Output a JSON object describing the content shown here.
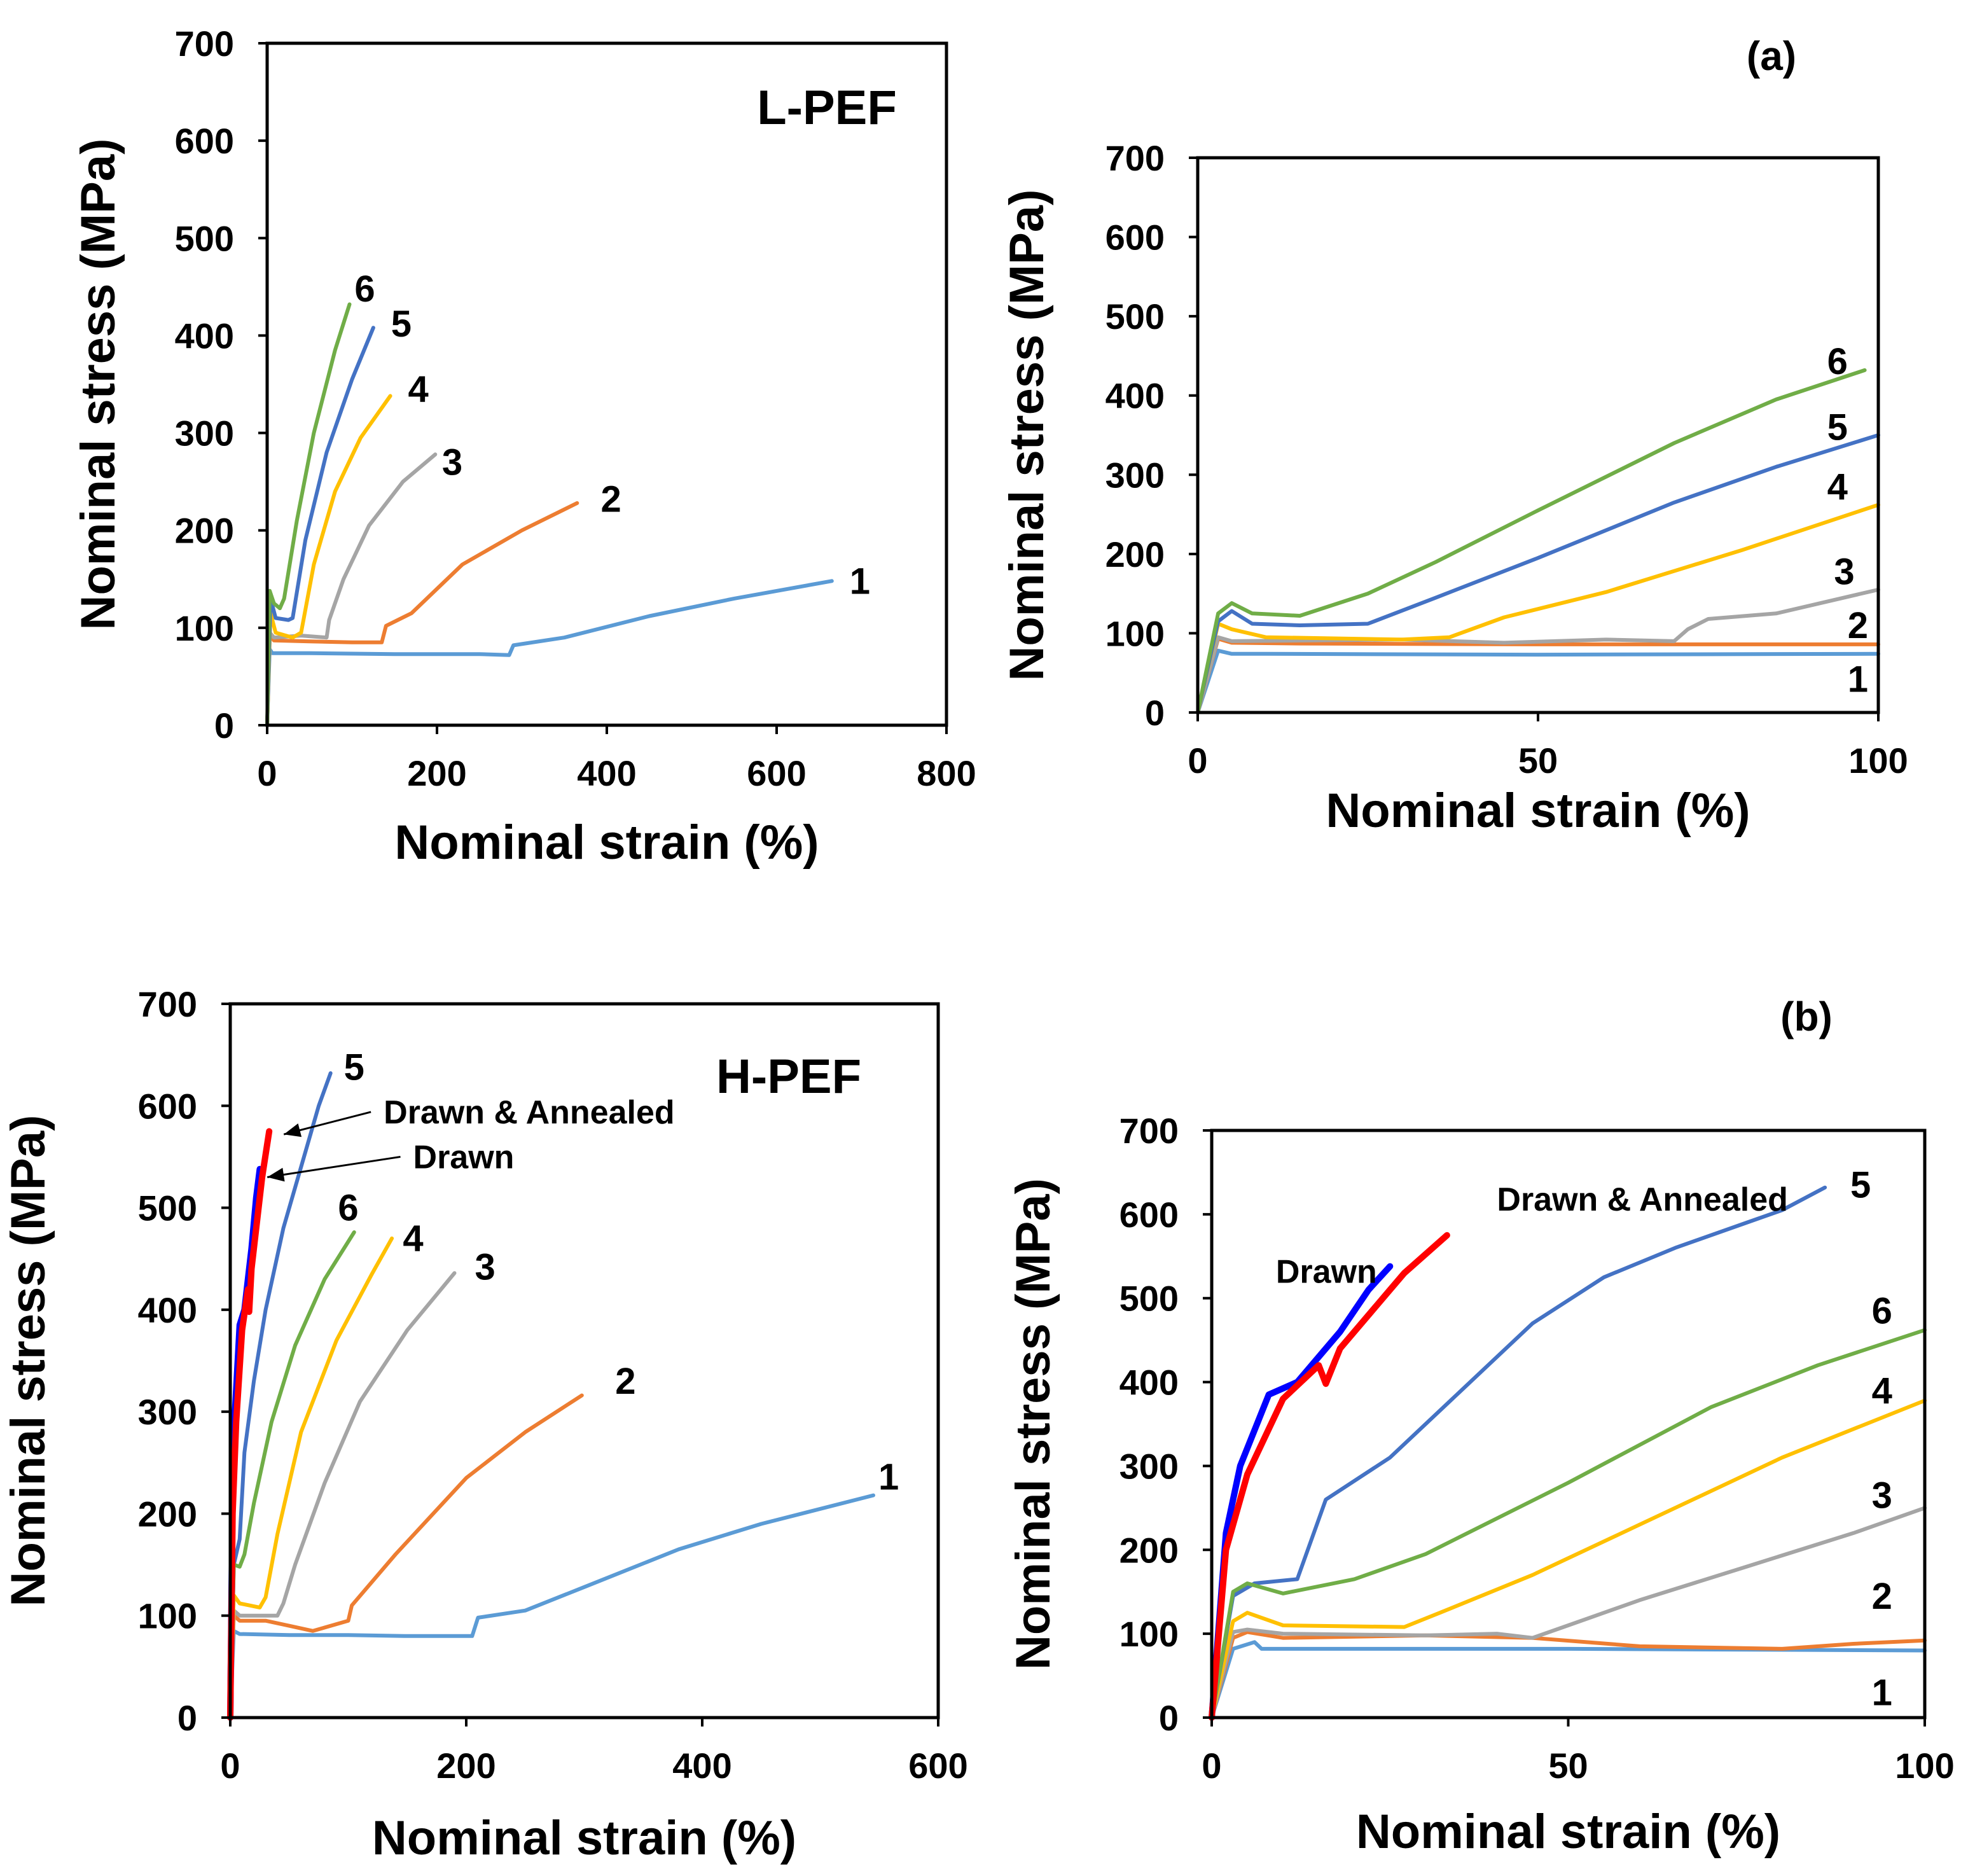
{
  "figure": {
    "panel_labels": [
      "(a)",
      "(b)"
    ],
    "colors": {
      "c1": "#5b9bd5",
      "c2": "#ed7d31",
      "c3": "#a5a5a5",
      "c4": "#ffc000",
      "c5": "#4472c4",
      "c6": "#70ad47",
      "drawn": "#0000ff",
      "annealed": "#ff0000"
    }
  },
  "chart_data": [
    {
      "id": "a-full",
      "type": "line",
      "title": "L-PEF",
      "xlabel": "Nominal strain (%)",
      "ylabel": "Nominal stress (MPa)",
      "xlim": [
        0,
        800
      ],
      "ylim": [
        0,
        700
      ],
      "xticks": [
        0,
        200,
        400,
        600,
        800
      ],
      "yticks": [
        0,
        100,
        200,
        300,
        400,
        500,
        600,
        700
      ],
      "series": [
        {
          "name": "1",
          "color": "#5b9bd5",
          "label_at": [
            698,
            148
          ],
          "x": [
            0,
            3,
            6,
            50,
            150,
            250,
            285,
            290,
            350,
            450,
            550,
            665
          ],
          "y": [
            0,
            78,
            74,
            74,
            73,
            73,
            72,
            82,
            90,
            112,
            130,
            148
          ]
        },
        {
          "name": "2",
          "color": "#ed7d31",
          "label_at": [
            405,
            232
          ],
          "x": [
            0,
            3,
            8,
            50,
            100,
            135,
            140,
            170,
            230,
            300,
            365
          ],
          "y": [
            0,
            93,
            87,
            86,
            85,
            85,
            102,
            115,
            165,
            200,
            228
          ]
        },
        {
          "name": "3",
          "color": "#a5a5a5",
          "label_at": [
            218,
            270
          ],
          "x": [
            0,
            3,
            8,
            40,
            70,
            73,
            90,
            120,
            160,
            198
          ],
          "y": [
            0,
            95,
            90,
            92,
            90,
            108,
            150,
            205,
            250,
            278
          ]
        },
        {
          "name": "4",
          "color": "#ffc000",
          "label_at": [
            178,
            345
          ],
          "x": [
            0,
            4,
            10,
            30,
            40,
            55,
            80,
            110,
            145
          ],
          "y": [
            0,
            115,
            95,
            90,
            95,
            165,
            240,
            295,
            338
          ]
        },
        {
          "name": "5",
          "color": "#4472c4",
          "label_at": [
            158,
            412
          ],
          "x": [
            0,
            4,
            10,
            25,
            30,
            45,
            70,
            100,
            125
          ],
          "y": [
            0,
            130,
            110,
            108,
            110,
            190,
            280,
            355,
            408
          ]
        },
        {
          "name": "6",
          "color": "#70ad47",
          "label_at": [
            115,
            448
          ],
          "x": [
            0,
            3,
            8,
            15,
            20,
            35,
            55,
            80,
            97
          ],
          "y": [
            0,
            138,
            125,
            120,
            130,
            210,
            300,
            385,
            432
          ]
        }
      ]
    },
    {
      "id": "a-zoom",
      "type": "line",
      "xlabel": "Nominal strain (%)",
      "ylabel": "Nominal stress (MPa)",
      "xlim": [
        0,
        100
      ],
      "ylim": [
        0,
        700
      ],
      "xticks": [
        0,
        50,
        100
      ],
      "yticks": [
        0,
        100,
        200,
        300,
        400,
        500,
        600,
        700
      ],
      "series": [
        {
          "name": "1",
          "color": "#5b9bd5",
          "label_at": [
            97,
            42
          ],
          "x": [
            0,
            3,
            5,
            10,
            50,
            100
          ],
          "y": [
            0,
            78,
            74,
            74,
            73,
            74
          ]
        },
        {
          "name": "2",
          "color": "#ed7d31",
          "label_at": [
            97,
            110
          ],
          "x": [
            0,
            3,
            5,
            15,
            50,
            100
          ],
          "y": [
            0,
            93,
            88,
            87,
            86,
            86
          ]
        },
        {
          "name": "3",
          "color": "#a5a5a5",
          "label_at": [
            95,
            178
          ],
          "x": [
            0,
            3,
            5,
            30,
            45,
            60,
            70,
            72,
            75,
            85,
            100
          ],
          "y": [
            0,
            95,
            90,
            92,
            88,
            92,
            90,
            105,
            118,
            125,
            155
          ]
        },
        {
          "name": "4",
          "color": "#ffc000",
          "label_at": [
            94,
            285
          ],
          "x": [
            0,
            3,
            5,
            10,
            30,
            37,
            45,
            60,
            80,
            100
          ],
          "y": [
            0,
            112,
            105,
            95,
            92,
            95,
            120,
            152,
            205,
            262
          ]
        },
        {
          "name": "5",
          "color": "#4472c4",
          "label_at": [
            94,
            360
          ],
          "x": [
            0,
            3,
            5,
            8,
            15,
            25,
            35,
            50,
            70,
            85,
            100
          ],
          "y": [
            0,
            115,
            128,
            112,
            110,
            112,
            145,
            195,
            265,
            310,
            350
          ]
        },
        {
          "name": "6",
          "color": "#70ad47",
          "label_at": [
            94,
            443
          ],
          "x": [
            0,
            3,
            5,
            8,
            15,
            25,
            35,
            50,
            70,
            85,
            98
          ],
          "y": [
            0,
            125,
            138,
            125,
            122,
            150,
            190,
            255,
            340,
            395,
            432
          ]
        }
      ]
    },
    {
      "id": "b-full",
      "type": "line",
      "title": "H-PEF",
      "xlabel": "Nominal strain (%)",
      "ylabel": "Nominal stress (MPa)",
      "xlim": [
        0,
        600
      ],
      "ylim": [
        0,
        700
      ],
      "xticks": [
        0,
        200,
        400,
        600
      ],
      "yticks": [
        0,
        100,
        200,
        300,
        400,
        500,
        600,
        700
      ],
      "annotations": [
        {
          "text": "Drawn & Annealed",
          "text_at": [
            130,
            594
          ],
          "point_to": [
            40,
            572
          ]
        },
        {
          "text": "Drawn",
          "text_at": [
            155,
            550
          ],
          "point_to": [
            26,
            530
          ]
        }
      ],
      "series": [
        {
          "name": "1",
          "color": "#5b9bd5",
          "label_at": [
            558,
            236
          ],
          "x": [
            0,
            3,
            8,
            50,
            100,
            150,
            205,
            210,
            250,
            300,
            380,
            450,
            545
          ],
          "y": [
            0,
            85,
            82,
            81,
            81,
            80,
            80,
            98,
            105,
            128,
            165,
            190,
            218
          ]
        },
        {
          "name": "2",
          "color": "#ed7d31",
          "label_at": [
            335,
            330
          ],
          "x": [
            0,
            3,
            8,
            30,
            50,
            70,
            100,
            103,
            140,
            200,
            250,
            298
          ],
          "y": [
            0,
            100,
            95,
            95,
            90,
            85,
            95,
            110,
            160,
            235,
            280,
            316
          ]
        },
        {
          "name": "3",
          "color": "#a5a5a5",
          "label_at": [
            216,
            442
          ],
          "x": [
            0,
            3,
            8,
            25,
            40,
            45,
            55,
            80,
            110,
            150,
            190
          ],
          "y": [
            0,
            105,
            100,
            100,
            100,
            112,
            150,
            230,
            310,
            380,
            436
          ]
        },
        {
          "name": "4",
          "color": "#ffc000",
          "label_at": [
            155,
            470
          ],
          "x": [
            0,
            3,
            8,
            25,
            30,
            40,
            60,
            90,
            120,
            137
          ],
          "y": [
            0,
            120,
            112,
            108,
            118,
            180,
            280,
            370,
            435,
            470
          ]
        },
        {
          "name": "5",
          "color": "#4472c4",
          "label_at": [
            105,
            638
          ],
          "x": [
            0,
            3,
            8,
            12,
            20,
            30,
            45,
            60,
            75,
            85
          ],
          "y": [
            0,
            150,
            175,
            260,
            330,
            400,
            480,
            540,
            600,
            632
          ]
        },
        {
          "name": "6",
          "color": "#70ad47",
          "label_at": [
            100,
            500
          ],
          "x": [
            0,
            3,
            8,
            12,
            20,
            35,
            55,
            80,
            105
          ],
          "y": [
            0,
            150,
            148,
            160,
            210,
            290,
            365,
            430,
            476
          ]
        },
        {
          "name": "Drawn",
          "color": "#0000ff",
          "x": [
            0,
            2,
            4,
            8,
            12,
            15,
            18,
            22,
            25
          ],
          "y": [
            0,
            220,
            300,
            385,
            400,
            430,
            460,
            510,
            538
          ]
        },
        {
          "name": "Drawn & Annealed",
          "color": "#ff0000",
          "x": [
            0,
            2,
            5,
            10,
            15,
            16,
            18,
            22,
            27,
            33
          ],
          "y": [
            0,
            200,
            290,
            380,
            420,
            398,
            440,
            480,
            530,
            575
          ]
        }
      ]
    },
    {
      "id": "b-zoom",
      "type": "line",
      "xlabel": "Nominal strain (%)",
      "ylabel": "Nominal stress (MPa)",
      "xlim": [
        0,
        100
      ],
      "ylim": [
        0,
        700
      ],
      "xticks": [
        0,
        50,
        100
      ],
      "yticks": [
        0,
        100,
        200,
        300,
        400,
        500,
        600,
        700
      ],
      "annotations": [
        {
          "text": "Drawn & Annealed",
          "text_at": [
            40,
            618
          ]
        },
        {
          "text": "Drawn",
          "text_at": [
            9,
            532
          ]
        }
      ],
      "series": [
        {
          "name": "1",
          "color": "#5b9bd5",
          "label_at": [
            94,
            30
          ],
          "x": [
            0,
            3,
            6,
            7,
            10,
            50,
            100
          ],
          "y": [
            0,
            82,
            90,
            82,
            82,
            82,
            80
          ]
        },
        {
          "name": "2",
          "color": "#ed7d31",
          "label_at": [
            94,
            145
          ],
          "x": [
            0,
            3,
            5,
            10,
            30,
            45,
            60,
            80,
            90,
            100
          ],
          "y": [
            0,
            95,
            102,
            95,
            98,
            95,
            85,
            82,
            88,
            92
          ]
        },
        {
          "name": "3",
          "color": "#a5a5a5",
          "label_at": [
            94,
            265
          ],
          "x": [
            0,
            3,
            5,
            10,
            30,
            40,
            45,
            50,
            60,
            75,
            90,
            100
          ],
          "y": [
            0,
            102,
            105,
            100,
            98,
            100,
            95,
            110,
            140,
            180,
            220,
            250
          ]
        },
        {
          "name": "4",
          "color": "#ffc000",
          "label_at": [
            94,
            390
          ],
          "x": [
            0,
            3,
            5,
            10,
            27,
            32,
            45,
            60,
            80,
            100
          ],
          "y": [
            0,
            115,
            125,
            110,
            108,
            125,
            170,
            230,
            310,
            378
          ]
        },
        {
          "name": "5",
          "color": "#4472c4",
          "label_at": [
            91,
            635
          ],
          "x": [
            0,
            3,
            6,
            12,
            16,
            25,
            35,
            45,
            55,
            65,
            75,
            80,
            86
          ],
          "y": [
            0,
            145,
            160,
            165,
            260,
            310,
            390,
            470,
            525,
            560,
            590,
            605,
            632
          ]
        },
        {
          "name": "6",
          "color": "#70ad47",
          "label_at": [
            94,
            485
          ],
          "x": [
            0,
            3,
            5,
            10,
            20,
            30,
            50,
            70,
            85,
            100
          ],
          "y": [
            0,
            150,
            160,
            148,
            165,
            195,
            280,
            370,
            420,
            462
          ]
        },
        {
          "name": "Drawn",
          "color": "#0000ff",
          "x": [
            0,
            2,
            4,
            8,
            12,
            15,
            18,
            22,
            25
          ],
          "y": [
            0,
            220,
            300,
            385,
            400,
            430,
            460,
            510,
            538
          ]
        },
        {
          "name": "Drawn & Annealed",
          "color": "#ff0000",
          "x": [
            0,
            2,
            5,
            10,
            15,
            16,
            18,
            22,
            27,
            33
          ],
          "y": [
            0,
            200,
            290,
            380,
            420,
            398,
            440,
            480,
            530,
            575
          ]
        }
      ]
    }
  ]
}
